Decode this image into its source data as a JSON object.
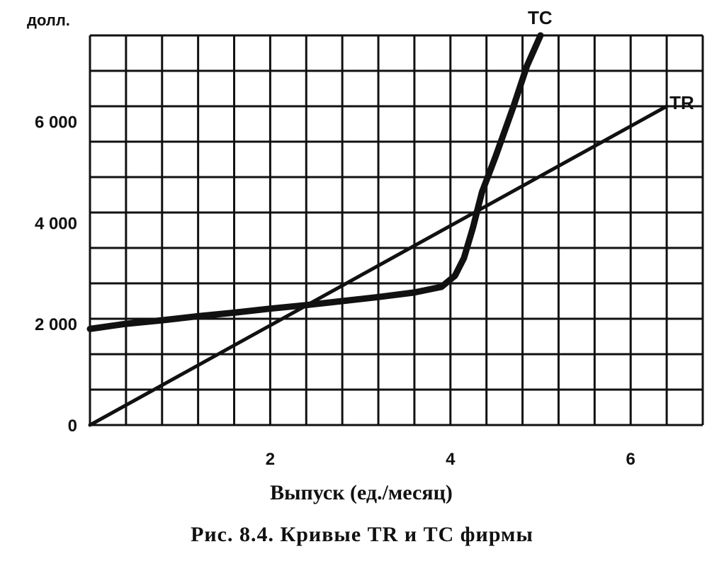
{
  "chart_data": {
    "type": "line",
    "ylabel": "долл.",
    "xlabel": "Выпуск (ед./месяц)",
    "x_ticks": [
      {
        "value": 0,
        "label": ""
      },
      {
        "value": 2,
        "label": "2"
      },
      {
        "value": 4,
        "label": "4"
      },
      {
        "value": 6,
        "label": "6"
      }
    ],
    "y_ticks": [
      {
        "value": 0,
        "label": "0"
      },
      {
        "value": 2000,
        "label": "2 000"
      },
      {
        "value": 4000,
        "label": "4 000"
      },
      {
        "value": 6000,
        "label": "6 000"
      }
    ],
    "xlim": [
      0,
      6.8
    ],
    "ylim": [
      0,
      7700
    ],
    "grid": true,
    "grid_step_x": 0.4,
    "grid_step_y": 700,
    "series": [
      {
        "name": "TC",
        "x": [
          0,
          0.4,
          0.8,
          1.2,
          1.6,
          2.0,
          2.4,
          2.8,
          3.2,
          3.6,
          3.9,
          4.05,
          4.15,
          4.25,
          4.35,
          4.5,
          4.7,
          4.85,
          5.0
        ],
        "y": [
          1900,
          2000,
          2070,
          2150,
          2220,
          2300,
          2370,
          2450,
          2530,
          2620,
          2730,
          2950,
          3300,
          3900,
          4600,
          5300,
          6300,
          7100,
          7700
        ]
      },
      {
        "name": "TR",
        "x": [
          0,
          6.4
        ],
        "y": [
          0,
          6300
        ]
      }
    ]
  },
  "caption": "Рис. 8.4. Кривые TR и TC фирмы"
}
